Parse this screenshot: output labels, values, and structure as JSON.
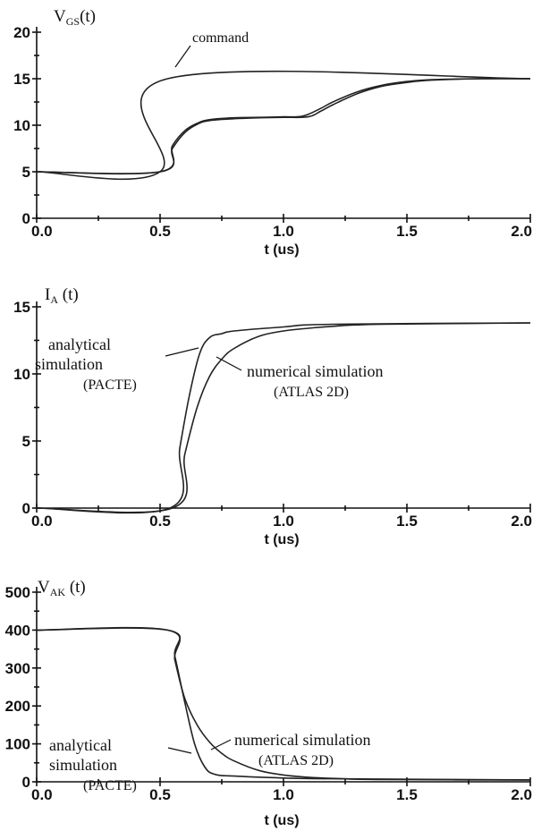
{
  "chart_data": [
    {
      "type": "line",
      "ylabel": {
        "main": "V",
        "sub": "GS",
        "tail": "(t)"
      },
      "xlabel": "t (us)",
      "xlim": [
        0,
        2.0
      ],
      "ylim": [
        0,
        20
      ],
      "xticks": [
        "0.0",
        "0.5",
        "1.0",
        "1.5",
        "2.0"
      ],
      "yticks": [
        "0",
        "5",
        "10",
        "15",
        "20"
      ],
      "annotations": [
        {
          "text": "command"
        }
      ],
      "series": [
        {
          "x": [
            0,
            0.5,
            0.53,
            2.0
          ],
          "y": [
            5,
            5,
            15,
            15
          ]
        },
        {
          "x": [
            0,
            0.5,
            0.55,
            0.6,
            0.65,
            0.7,
            0.8,
            0.9,
            1.0,
            1.08,
            1.15,
            1.2,
            1.3,
            1.4,
            1.5,
            1.6,
            1.8,
            2.0
          ],
          "y": [
            5,
            5,
            7.8,
            9.4,
            10.2,
            10.6,
            10.8,
            10.85,
            10.9,
            11.0,
            11.8,
            12.5,
            13.6,
            14.3,
            14.7,
            14.9,
            15,
            15
          ]
        },
        {
          "x": [
            0,
            0.5,
            0.55,
            0.6,
            0.65,
            0.7,
            0.8,
            0.9,
            1.0,
            1.1,
            1.15,
            1.2,
            1.3,
            1.4,
            1.5,
            1.6,
            1.8,
            2.0
          ],
          "y": [
            5,
            5,
            7.5,
            9.2,
            10.1,
            10.5,
            10.7,
            10.8,
            10.85,
            10.9,
            11.5,
            12.2,
            13.4,
            14.2,
            14.6,
            14.85,
            15,
            15
          ]
        }
      ]
    },
    {
      "type": "line",
      "ylabel": {
        "main": "I",
        "sub": "A",
        "tail": " (t)"
      },
      "xlabel": "t (us)",
      "xlim": [
        0,
        2.0
      ],
      "ylim": [
        0,
        15
      ],
      "xticks": [
        "0.0",
        "0.5",
        "1.0",
        "1.5",
        "2.0"
      ],
      "yticks": [
        "0",
        "5",
        "10",
        "15"
      ],
      "annotations": [
        {
          "lines": [
            "analytical",
            "simulation",
            "(PACTE)"
          ]
        },
        {
          "lines": [
            "numerical simulation",
            "(ATLAS 2D)"
          ]
        }
      ],
      "series": [
        {
          "x": [
            0,
            0.54,
            0.58,
            0.62,
            0.66,
            0.7,
            0.75,
            0.8,
            1.0,
            1.2,
            2.0
          ],
          "y": [
            0,
            0,
            4.5,
            8.5,
            11.5,
            12.7,
            13.0,
            13.2,
            13.5,
            13.7,
            13.8
          ]
        },
        {
          "x": [
            0,
            0.55,
            0.6,
            0.65,
            0.7,
            0.75,
            0.8,
            0.9,
            1.0,
            1.1,
            1.2,
            1.4,
            2.0
          ],
          "y": [
            0,
            0,
            4,
            7.5,
            9.8,
            11.1,
            11.9,
            12.8,
            13.2,
            13.4,
            13.55,
            13.7,
            13.8
          ]
        }
      ]
    },
    {
      "type": "line",
      "ylabel": {
        "main": "V",
        "sub": "AK",
        "tail": " (t)"
      },
      "xlabel": "t (us)",
      "xlim": [
        0,
        2.0
      ],
      "ylim": [
        0,
        500
      ],
      "xticks": [
        "0.0",
        "0.5",
        "1.0",
        "1.5",
        "2.0"
      ],
      "yticks": [
        "0",
        "100",
        "200",
        "300",
        "400",
        "500"
      ],
      "annotations": [
        {
          "lines": [
            "analytical",
            "simulation",
            "(PACTE)"
          ]
        },
        {
          "lines": [
            "numerical simulation",
            "(ATLAS 2D)"
          ]
        }
      ],
      "series": [
        {
          "x": [
            0,
            0.53,
            0.56,
            0.6,
            0.64,
            0.68,
            0.72,
            0.8,
            1.0,
            1.2,
            2.0
          ],
          "y": [
            400,
            400,
            330,
            210,
            100,
            40,
            20,
            15,
            10,
            8,
            5
          ]
        },
        {
          "x": [
            0,
            0.53,
            0.56,
            0.6,
            0.65,
            0.7,
            0.75,
            0.8,
            0.9,
            1.0,
            1.1,
            1.2,
            1.4,
            2.0
          ],
          "y": [
            400,
            400,
            320,
            220,
            150,
            105,
            75,
            55,
            30,
            18,
            12,
            9,
            6,
            5
          ]
        }
      ]
    }
  ]
}
